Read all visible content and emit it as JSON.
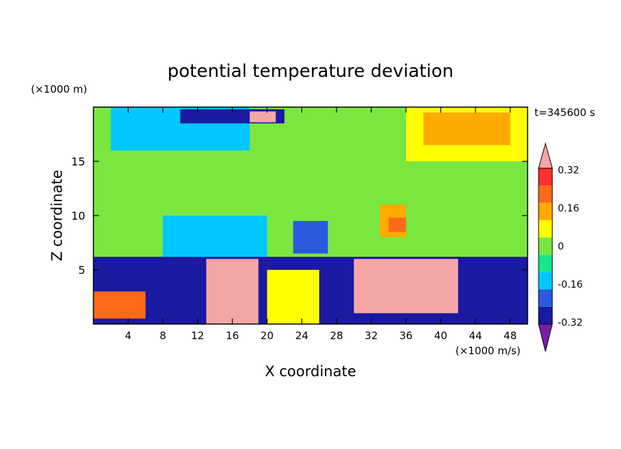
{
  "chart_data": {
    "type": "heatmap",
    "title": "potential temperature deviation",
    "xlabel": "X coordinate",
    "ylabel": "Z coordinate",
    "x_unit": "(×1000 m/s)",
    "y_unit": "(×1000 m)",
    "time_label": "t=345600 s",
    "xlim": [
      0,
      50
    ],
    "ylim": [
      0,
      20
    ],
    "x_ticks": [
      4,
      8,
      12,
      16,
      20,
      24,
      28,
      32,
      36,
      40,
      44,
      48
    ],
    "y_ticks": [
      5,
      10,
      15
    ],
    "colorbar": {
      "levels": [
        -0.4,
        -0.32,
        -0.24,
        -0.16,
        -0.08,
        0,
        0.08,
        0.16,
        0.24,
        0.32,
        0.4
      ],
      "tick_labels": [
        "0.32",
        "0.16",
        "0",
        "-0.16",
        "-0.32"
      ],
      "tick_values": [
        0.32,
        0.16,
        0,
        -0.16,
        -0.32
      ],
      "colors": [
        "#7a1fa2",
        "#1a1aa0",
        "#2a5ae0",
        "#00c8ff",
        "#16e68c",
        "#7ae640",
        "#ffff00",
        "#ffaa00",
        "#ff6a1a",
        "#ff3030",
        "#f4a6a6"
      ],
      "extend": "both"
    },
    "field_regions": [
      {
        "x": [
          0,
          50
        ],
        "z": [
          6.2,
          20
        ],
        "value": 0.02
      },
      {
        "x": [
          2,
          18
        ],
        "z": [
          16,
          20
        ],
        "value": -0.12
      },
      {
        "x": [
          10,
          22
        ],
        "z": [
          18.5,
          19.8
        ],
        "value": -0.28
      },
      {
        "x": [
          18,
          21
        ],
        "z": [
          18.6,
          19.6
        ],
        "value": 0.42
      },
      {
        "x": [
          36,
          50
        ],
        "z": [
          15,
          20
        ],
        "value": 0.14
      },
      {
        "x": [
          38,
          48
        ],
        "z": [
          16.5,
          19.5
        ],
        "value": 0.2
      },
      {
        "x": [
          8,
          20
        ],
        "z": [
          6.2,
          10
        ],
        "value": -0.1
      },
      {
        "x": [
          23,
          27
        ],
        "z": [
          6.5,
          9.5
        ],
        "value": -0.2
      },
      {
        "x": [
          33,
          36
        ],
        "z": [
          8,
          11
        ],
        "value": 0.18
      },
      {
        "x": [
          34,
          36
        ],
        "z": [
          8.5,
          9.8
        ],
        "value": 0.3
      },
      {
        "x": [
          0,
          50
        ],
        "z": [
          0,
          6.2
        ],
        "value": -0.3
      },
      {
        "x": [
          13,
          19
        ],
        "z": [
          0,
          6
        ],
        "value": 0.42
      },
      {
        "x": [
          30,
          42
        ],
        "z": [
          1,
          6
        ],
        "value": 0.42
      },
      {
        "x": [
          0,
          6
        ],
        "z": [
          0.5,
          3
        ],
        "value": 0.3
      },
      {
        "x": [
          20,
          26
        ],
        "z": [
          0,
          5
        ],
        "value": 0.1
      }
    ]
  }
}
